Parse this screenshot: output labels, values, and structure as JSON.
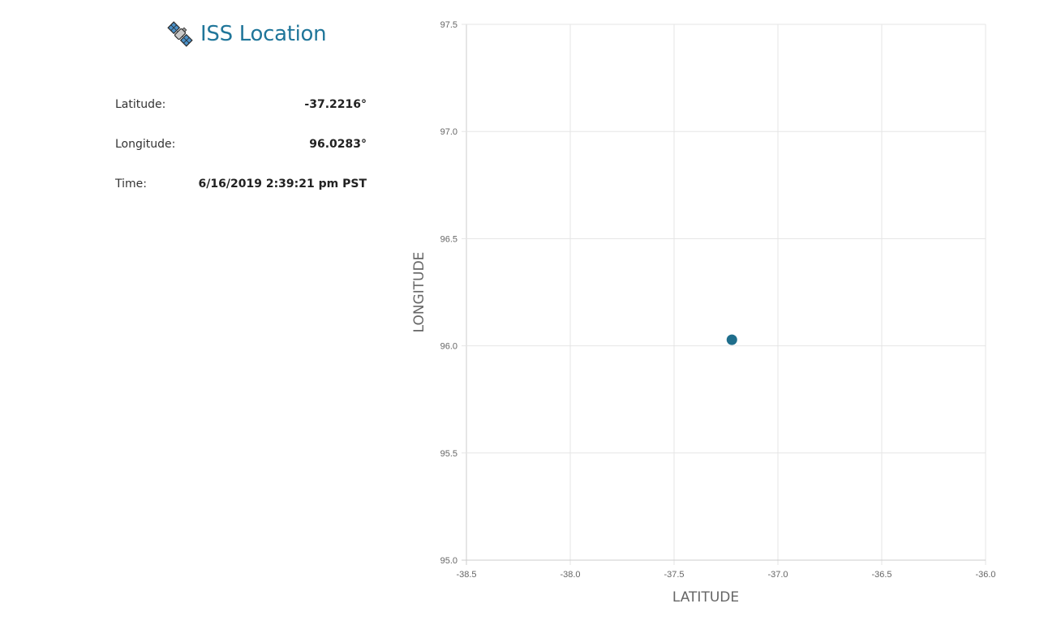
{
  "header": {
    "title": "ISS Location",
    "icon": "satellite-icon"
  },
  "info": {
    "latitude_label": "Latitude:",
    "latitude_value": "-37.2216°",
    "longitude_label": "Longitude:",
    "longitude_value": "96.0283°",
    "time_label": "Time:",
    "time_value": "6/16/2019 2:39:21 pm PST"
  },
  "colors": {
    "accent": "#20769a",
    "point": "#1f6e8c",
    "grid": "#e5e5e5",
    "axis_text": "#666666"
  },
  "chart_data": {
    "type": "scatter",
    "title": "",
    "xlabel": "LATITUDE",
    "ylabel": "LONGITUDE",
    "xlim": [
      -38.5,
      -36.0
    ],
    "ylim": [
      95.0,
      97.5
    ],
    "x_ticks": [
      "-38.5",
      "-38.0",
      "-37.5",
      "-37.0",
      "-36.5",
      "-36.0"
    ],
    "y_ticks": [
      "95.0",
      "95.5",
      "96.0",
      "96.5",
      "97.0",
      "97.5"
    ],
    "grid": true,
    "legend": "none",
    "points": [
      {
        "x": -37.2216,
        "y": 96.0283
      }
    ]
  }
}
